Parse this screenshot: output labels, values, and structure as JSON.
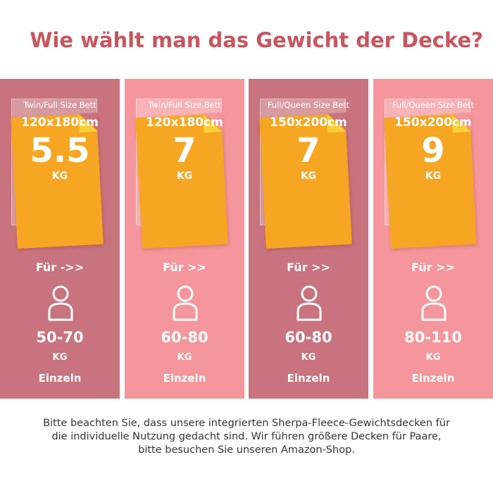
{
  "title": "Wie wählt man das Gewicht der Decke?",
  "columns": [
    {
      "size_label": "Twin/Full Size Bett",
      "dimensions": "120x180cm",
      "weight": "5.5",
      "weight_unit": "KG",
      "for_label": "Für ->>",
      "person_range": "50-70",
      "person_unit": "KG",
      "usage": "Einzeln",
      "theme": "dark"
    },
    {
      "size_label": "Twin/Full Size Bett",
      "dimensions": "120x180cm",
      "weight": "7",
      "weight_unit": "KG",
      "for_label": "Für >>",
      "person_range": "60-80",
      "person_unit": "KG",
      "usage": "Einzeln",
      "theme": "light"
    },
    {
      "size_label": "Full/Queen Size Bett",
      "dimensions": "150x200cm",
      "weight": "7",
      "weight_unit": "KG",
      "for_label": "Für >>",
      "person_range": "60-80",
      "person_unit": "KG",
      "usage": "Einzeln",
      "theme": "dark"
    },
    {
      "size_label": "Full/Queen Size Bett",
      "dimensions": "150x200cm",
      "weight": "9",
      "weight_unit": "KG",
      "for_label": "Für >>",
      "person_range": "80-110",
      "person_unit": "KG",
      "usage": "Einzeln",
      "theme": "light"
    }
  ],
  "footnote": {
    "line1": "Bitte beachten Sie, dass unsere integrierten Sherpa-Fleece-Gewichtsdecken für",
    "line2": "die individuelle Nutzung gedacht sind. Wir führen größere Decken für Paare,",
    "line3": "bitte besuchen Sie unseren Amazon-Shop."
  },
  "colors": {
    "title": "#c75560",
    "column_dark": "#c8737d",
    "column_light": "#f4969c",
    "card": "#f6a623",
    "text": "#ffffff",
    "footnote": "#333333"
  },
  "icons": {
    "person": "person-outline-icon",
    "fold": "folded-corner-icon"
  }
}
